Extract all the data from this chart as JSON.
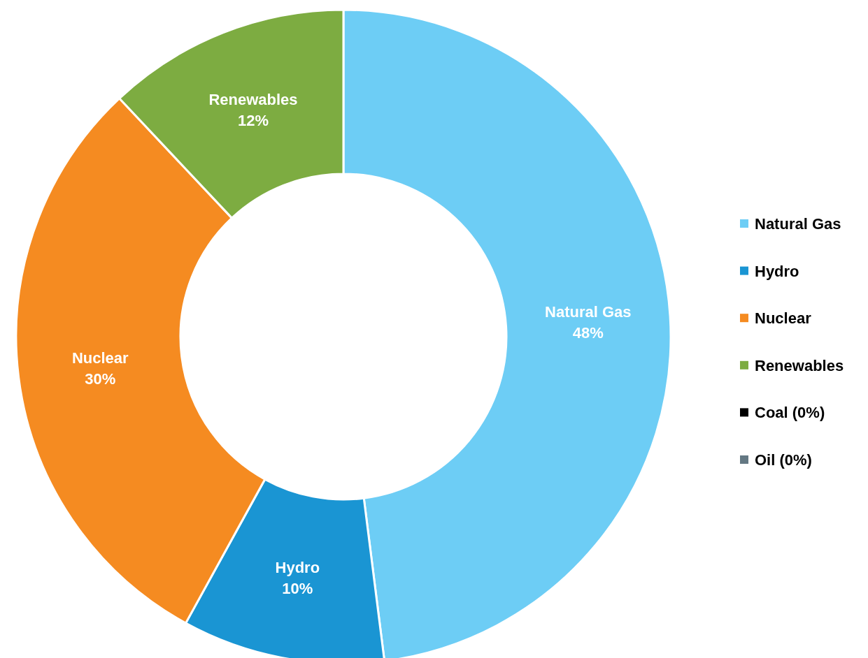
{
  "chart_data": {
    "type": "donut",
    "categories": [
      "Natural Gas",
      "Hydro",
      "Nuclear",
      "Renewables",
      "Coal (0%)",
      "Oil (0%)"
    ],
    "values": [
      48,
      10,
      30,
      12,
      0,
      0
    ],
    "colors": [
      "#6dcdf5",
      "#1a95d3",
      "#f58b21",
      "#7dac41",
      "#000000",
      "#647883"
    ],
    "value_labels": [
      "48%",
      "10%",
      "30%",
      "12%",
      null,
      null
    ],
    "legend": "right"
  }
}
